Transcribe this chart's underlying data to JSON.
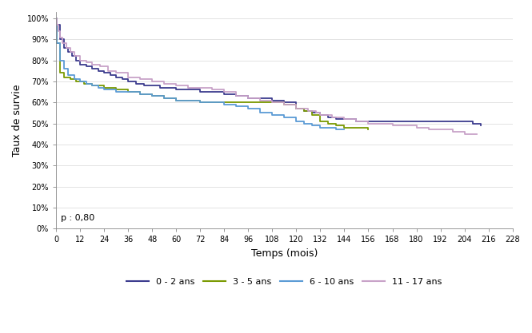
{
  "title": "",
  "xlabel": "Temps (mois)",
  "ylabel": "Taux de survie",
  "p_value": "p : 0,80",
  "xlim": [
    0,
    228
  ],
  "ylim": [
    0.0,
    1.03
  ],
  "xticks": [
    0,
    12,
    24,
    36,
    48,
    60,
    72,
    84,
    96,
    108,
    120,
    132,
    144,
    156,
    168,
    180,
    192,
    204,
    216,
    228
  ],
  "yticks": [
    0.0,
    0.1,
    0.2,
    0.3,
    0.4,
    0.5,
    0.6,
    0.7,
    0.8,
    0.9,
    1.0
  ],
  "ytick_labels": [
    "0%",
    "10%",
    "20%",
    "30%",
    "40%",
    "50%",
    "60%",
    "70%",
    "80%",
    "90%",
    "100%"
  ],
  "background_color": "#ffffff",
  "curves": {
    "0_2": {
      "label": "0 - 2 ans",
      "color": "#3b3b8e",
      "linewidth": 1.3,
      "x": [
        0,
        0.5,
        2,
        4,
        6,
        8,
        10,
        12,
        15,
        18,
        21,
        24,
        27,
        30,
        33,
        36,
        40,
        44,
        48,
        52,
        56,
        60,
        66,
        72,
        78,
        84,
        90,
        96,
        102,
        108,
        114,
        120,
        124,
        128,
        132,
        136,
        140,
        144,
        150,
        156,
        162,
        168,
        174,
        180,
        186,
        192,
        198,
        204,
        208,
        212
      ],
      "y": [
        1.0,
        0.97,
        0.9,
        0.86,
        0.84,
        0.82,
        0.8,
        0.78,
        0.77,
        0.76,
        0.75,
        0.74,
        0.73,
        0.72,
        0.71,
        0.7,
        0.69,
        0.68,
        0.68,
        0.67,
        0.67,
        0.66,
        0.66,
        0.65,
        0.65,
        0.64,
        0.63,
        0.62,
        0.62,
        0.61,
        0.6,
        0.57,
        0.56,
        0.55,
        0.54,
        0.53,
        0.52,
        0.52,
        0.51,
        0.51,
        0.51,
        0.51,
        0.51,
        0.51,
        0.51,
        0.51,
        0.51,
        0.51,
        0.5,
        0.49
      ]
    },
    "3_5": {
      "label": "3 - 5 ans",
      "color": "#7a9a01",
      "linewidth": 1.3,
      "x": [
        0,
        0.5,
        2,
        4,
        7,
        10,
        14,
        18,
        22,
        24,
        27,
        30,
        36,
        42,
        48,
        54,
        60,
        66,
        72,
        78,
        84,
        90,
        96,
        102,
        108,
        114,
        120,
        124,
        128,
        132,
        136,
        140,
        144,
        156
      ],
      "y": [
        1.0,
        0.88,
        0.74,
        0.72,
        0.71,
        0.7,
        0.69,
        0.68,
        0.68,
        0.67,
        0.67,
        0.66,
        0.65,
        0.64,
        0.63,
        0.62,
        0.61,
        0.61,
        0.6,
        0.6,
        0.6,
        0.6,
        0.6,
        0.6,
        0.6,
        0.59,
        0.57,
        0.56,
        0.54,
        0.51,
        0.5,
        0.49,
        0.48,
        0.47
      ]
    },
    "6_10": {
      "label": "6 - 10 ans",
      "color": "#5b9bd5",
      "linewidth": 1.3,
      "x": [
        0,
        0.5,
        2,
        4,
        6,
        9,
        12,
        15,
        18,
        21,
        24,
        27,
        30,
        36,
        42,
        48,
        54,
        60,
        66,
        72,
        78,
        84,
        90,
        96,
        102,
        108,
        114,
        120,
        124,
        128,
        132,
        136,
        140,
        144
      ],
      "y": [
        1.0,
        0.88,
        0.8,
        0.76,
        0.73,
        0.71,
        0.7,
        0.69,
        0.68,
        0.67,
        0.66,
        0.66,
        0.65,
        0.65,
        0.64,
        0.63,
        0.62,
        0.61,
        0.61,
        0.6,
        0.6,
        0.59,
        0.58,
        0.57,
        0.55,
        0.54,
        0.53,
        0.51,
        0.5,
        0.49,
        0.48,
        0.48,
        0.47,
        0.47
      ]
    },
    "11_17": {
      "label": "11 - 17 ans",
      "color": "#c8a2c8",
      "linewidth": 1.3,
      "x": [
        0,
        0.5,
        1,
        2,
        3,
        5,
        7,
        9,
        12,
        15,
        18,
        22,
        26,
        30,
        36,
        42,
        48,
        54,
        60,
        66,
        72,
        78,
        84,
        90,
        96,
        102,
        108,
        114,
        120,
        126,
        130,
        132,
        138,
        144,
        150,
        156,
        162,
        168,
        174,
        180,
        186,
        192,
        198,
        204,
        210
      ],
      "y": [
        1.0,
        0.97,
        0.94,
        0.91,
        0.88,
        0.86,
        0.84,
        0.82,
        0.8,
        0.79,
        0.78,
        0.77,
        0.75,
        0.74,
        0.72,
        0.71,
        0.7,
        0.69,
        0.68,
        0.67,
        0.67,
        0.66,
        0.65,
        0.63,
        0.62,
        0.61,
        0.6,
        0.59,
        0.57,
        0.56,
        0.55,
        0.54,
        0.53,
        0.52,
        0.51,
        0.5,
        0.5,
        0.49,
        0.49,
        0.48,
        0.47,
        0.47,
        0.46,
        0.45,
        0.45
      ]
    }
  }
}
